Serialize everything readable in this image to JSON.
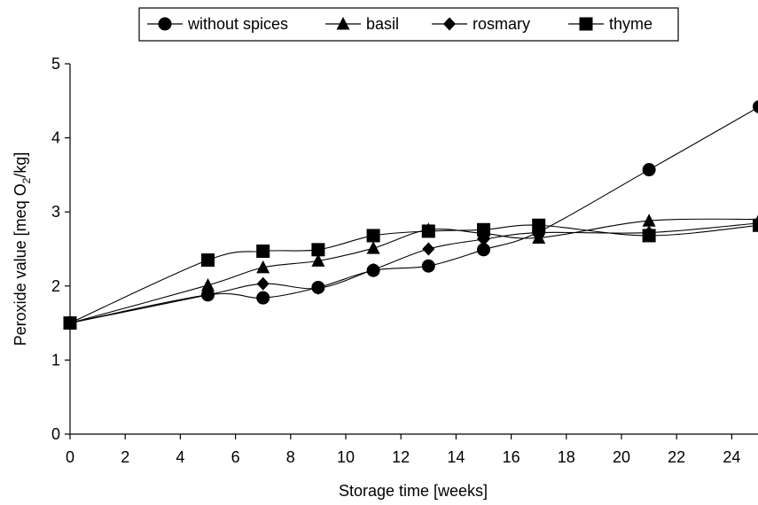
{
  "chart_data": {
    "type": "line",
    "xlabel": "Storage time [weeks]",
    "ylabel_parts": {
      "pre": "Peroxide value [meq O",
      "sub": "2",
      "post": "/kg]"
    },
    "xlim": [
      0,
      25
    ],
    "ylim": [
      0,
      5
    ],
    "xticks": [
      0,
      2,
      4,
      6,
      8,
      10,
      12,
      14,
      16,
      18,
      20,
      22,
      24
    ],
    "yticks": [
      0,
      1,
      2,
      3,
      4,
      5
    ],
    "grid": false,
    "legend_position": "top",
    "series": [
      {
        "name": "without spices",
        "marker": "circle",
        "x": [
          0,
          5,
          7,
          9,
          11,
          13,
          15,
          17,
          21,
          25
        ],
        "y": [
          1.5,
          1.88,
          1.84,
          1.98,
          2.21,
          2.27,
          2.49,
          2.73,
          3.57,
          4.42
        ]
      },
      {
        "name": "basil",
        "marker": "triangle",
        "x": [
          0,
          5,
          7,
          9,
          11,
          13,
          15,
          17,
          21,
          25
        ],
        "y": [
          1.5,
          2.01,
          2.25,
          2.34,
          2.51,
          2.76,
          2.71,
          2.65,
          2.88,
          2.9
        ]
      },
      {
        "name": "rosmary",
        "marker": "diamond",
        "x": [
          0,
          5,
          7,
          9,
          11,
          13,
          15,
          17,
          21,
          25
        ],
        "y": [
          1.5,
          1.88,
          2.03,
          1.97,
          2.22,
          2.5,
          2.63,
          2.72,
          2.72,
          2.85
        ]
      },
      {
        "name": "thyme",
        "marker": "square",
        "x": [
          0,
          5,
          7,
          9,
          11,
          13,
          15,
          17,
          21,
          25
        ],
        "y": [
          1.5,
          2.35,
          2.47,
          2.49,
          2.68,
          2.74,
          2.76,
          2.82,
          2.68,
          2.82
        ]
      }
    ]
  }
}
